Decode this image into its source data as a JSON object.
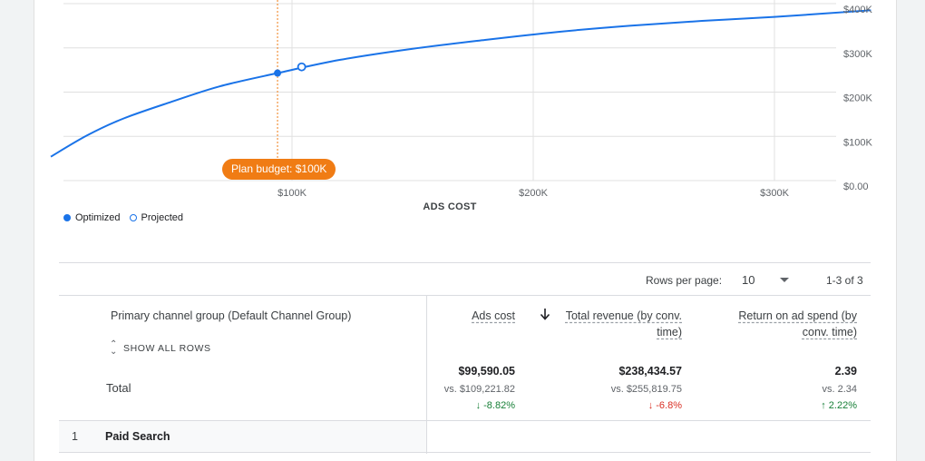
{
  "chart": {
    "x_axis_title": "ADS COST",
    "x_ticks": [
      "$100K",
      "$200K",
      "$300K"
    ],
    "y_ticks": [
      "$0.00",
      "$100K",
      "$200K",
      "$300K",
      "$400K"
    ],
    "budget_label": "Plan budget: $100K",
    "legend": {
      "optimized": "Optimized",
      "projected": "Projected"
    },
    "colors": {
      "line": "#1a73e8",
      "budget": "#f07c14"
    }
  },
  "chart_data": {
    "type": "line",
    "series": [
      {
        "name": "Optimized",
        "x": [
          0,
          15000,
          30000,
          50000,
          70000,
          94000,
          120000,
          150000,
          180000,
          210000,
          240000,
          270000,
          300000,
          340000
        ],
        "y": [
          54000,
          102000,
          140000,
          178000,
          213000,
          243000,
          273000,
          298000,
          318000,
          336000,
          350000,
          361000,
          370000,
          385000
        ]
      },
      {
        "name": "Projected",
        "x": [
          104000
        ],
        "y": [
          257000
        ]
      }
    ],
    "budget_x": 94000,
    "xlim": [
      0,
      340000
    ],
    "ylim": [
      0,
      400000
    ],
    "xlabel": "ADS COST",
    "grid": true,
    "legend_position": "bottom-left"
  },
  "pager": {
    "rows_label": "Rows per page:",
    "rows_value": "10",
    "range": "1-3 of 3"
  },
  "table": {
    "headers": {
      "dimension": "Primary channel group (Default Channel Group)",
      "ads_cost": "Ads cost",
      "revenue_line1": "Total revenue (by conv.",
      "revenue_line2": "time)",
      "roas_line1": "Return on ad spend (by",
      "roas_line2": "conv. time)"
    },
    "show_all_rows": "SHOW ALL ROWS",
    "total": {
      "label": "Total",
      "ads_cost": "$99,590.05",
      "ads_cost_vs": "vs. $109,221.82",
      "ads_cost_change": "-8.82%",
      "revenue": "$238,434.57",
      "revenue_vs": "vs. $255,819.75",
      "revenue_change": "-6.8%",
      "roas": "2.39",
      "roas_vs": "vs. 2.34",
      "roas_change": "2.22%"
    },
    "rows": [
      {
        "index": "1",
        "name": "Paid Search"
      }
    ]
  }
}
